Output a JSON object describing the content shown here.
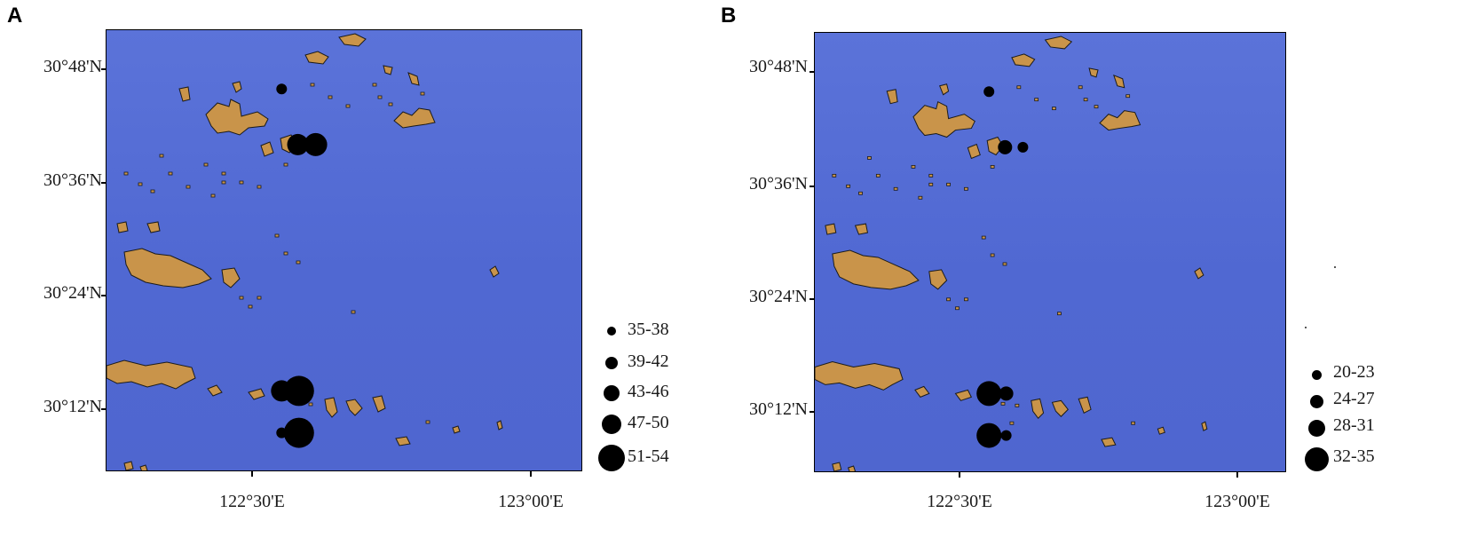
{
  "panels": [
    {
      "letter": "A",
      "lat_labels": [
        "30°48'N",
        "30°36'N",
        "30°24'N",
        "30°12'N"
      ],
      "lon_labels": [
        "122°30'E",
        "123°00'E"
      ],
      "legend": [
        "35-38",
        "39-42",
        "43-46",
        "47-50",
        "51-54"
      ]
    },
    {
      "letter": "B",
      "lat_labels": [
        "30°48'N",
        "30°36'N",
        "30°24'N",
        "30°12'N"
      ],
      "lon_labels": [
        "122°30'E",
        "123°00'E"
      ],
      "legend": [
        "20-23",
        "24-27",
        "28-31",
        "32-35"
      ]
    }
  ],
  "colors": {
    "sea": "#5670d6",
    "land": "#c9944a",
    "marker": "#000000"
  },
  "sites_a": [
    {
      "lon_e": 122.553,
      "lat_n": 30.765,
      "class": "35-38"
    },
    {
      "lon_e": 122.582,
      "lat_n": 30.667,
      "class": "43-46"
    },
    {
      "lon_e": 122.614,
      "lat_n": 30.667,
      "class": "47-50"
    },
    {
      "lon_e": 122.553,
      "lat_n": 30.232,
      "class": "43-46"
    },
    {
      "lon_e": 122.584,
      "lat_n": 30.232,
      "class": "51-54"
    },
    {
      "lon_e": 122.553,
      "lat_n": 30.158,
      "class": "35-38"
    },
    {
      "lon_e": 122.584,
      "lat_n": 30.158,
      "class": "51-54"
    }
  ],
  "sites_b": [
    {
      "lon_e": 122.553,
      "lat_n": 30.765,
      "class": "20-23"
    },
    {
      "lon_e": 122.582,
      "lat_n": 30.667,
      "class": "24-27"
    },
    {
      "lon_e": 122.614,
      "lat_n": 30.667,
      "class": "20-23"
    },
    {
      "lon_e": 122.553,
      "lat_n": 30.232,
      "class": "32-35"
    },
    {
      "lon_e": 122.584,
      "lat_n": 30.232,
      "class": "24-27"
    },
    {
      "lon_e": 122.553,
      "lat_n": 30.158,
      "class": "32-35"
    },
    {
      "lon_e": 122.584,
      "lat_n": 30.158,
      "class": "20-23"
    }
  ]
}
